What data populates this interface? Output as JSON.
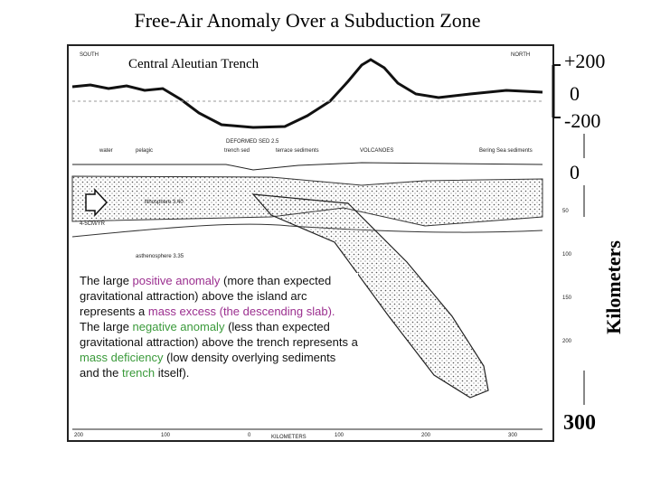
{
  "header": {
    "title": "Free-Air Anomaly Over a Subduction Zone"
  },
  "figure": {
    "subtitle": "Central Aleutian Trench",
    "scale_labels": [
      "+200",
      "0",
      "-200"
    ],
    "depth_top": "0",
    "depth_label": "Kilometers",
    "depth_bottom": "300",
    "scan_labels": {
      "south": "SOUTH",
      "north": "NORTH",
      "deformed": "DEFORMED SED 2.5",
      "volcanoes": "VOLCANOES",
      "trench": "trench sed",
      "terrace": "terrace sediments",
      "bering": "Bering Sea sediments",
      "water": "water",
      "pelagic": "pelagic",
      "lithosphere": "lithosphere 3.40",
      "asthenosphere": "asthenosphere 3.35",
      "rate": "4-5CM/YR",
      "km": "KILOMETERS"
    },
    "x_axis": [
      "200",
      "100",
      "0",
      "100",
      "200",
      "300"
    ],
    "depth_ticks": [
      "50",
      "100",
      "150",
      "200"
    ]
  },
  "paragraph": [
    {
      "text": "The large ",
      "color": "#111111"
    },
    {
      "text": "positive anomaly",
      "color": "#9b2f8f"
    },
    {
      "text": " (more than expected gravitational attraction) above the island arc represents a ",
      "color": "#111111"
    },
    {
      "text": "mass excess (the descending slab).",
      "color": "#9b2f8f"
    },
    {
      "text": "  The large ",
      "color": "#111111"
    },
    {
      "text": "negative anomaly",
      "color": "#3a9a3a"
    },
    {
      "text": " (less than expected gravitational attraction) above the trench represents a ",
      "color": "#111111"
    },
    {
      "text": "mass deficiency",
      "color": "#3a9a3a"
    },
    {
      "text": " (low density overlying sediments and the ",
      "color": "#111111"
    },
    {
      "text": "trench",
      "color": "#3a9a3a"
    },
    {
      "text": " itself).",
      "color": "#111111"
    }
  ]
}
